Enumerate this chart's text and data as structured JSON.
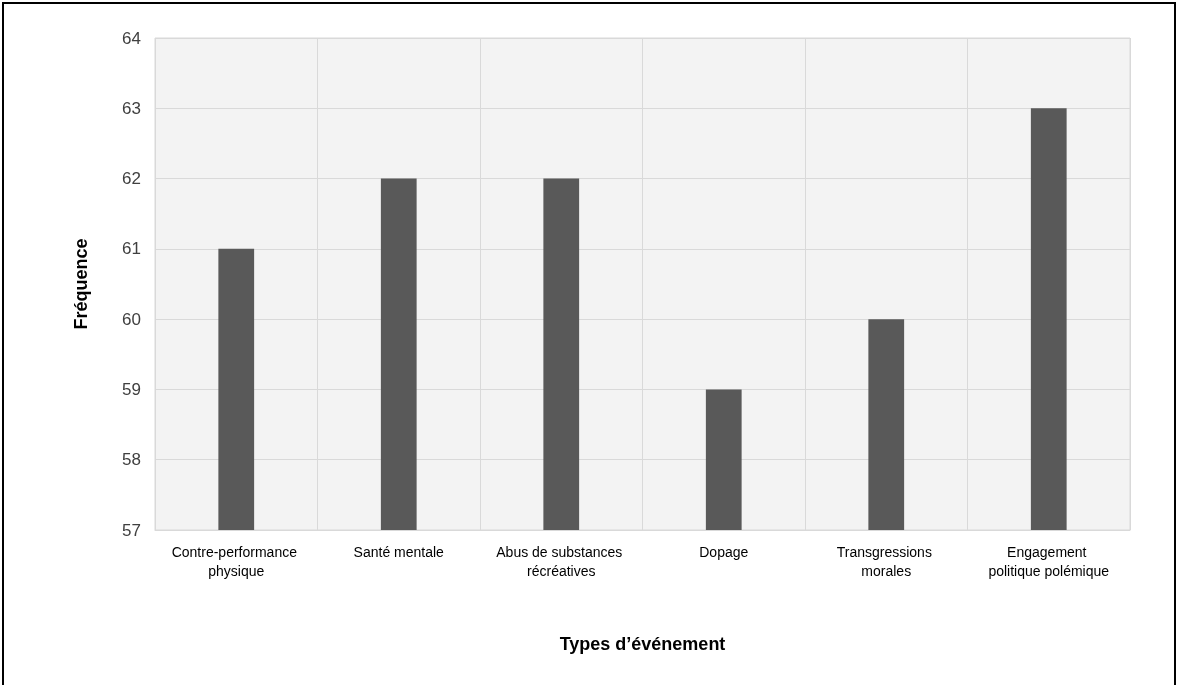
{
  "chart_data": {
    "type": "bar",
    "xlabel": "Types d’événement",
    "ylabel": "Fréquence",
    "categories": [
      "Contre-performance physique",
      "Santé mentale",
      "Abus de substances récréatives",
      "Dopage",
      "Transgressions morales",
      "Engagement politique polémique"
    ],
    "values": [
      61,
      62,
      62,
      59,
      60,
      63
    ],
    "color": "#595959",
    "ylim": [
      57,
      64
    ],
    "yticks": [
      57,
      58,
      59,
      60,
      61,
      62,
      63,
      64
    ],
    "grid": true
  }
}
